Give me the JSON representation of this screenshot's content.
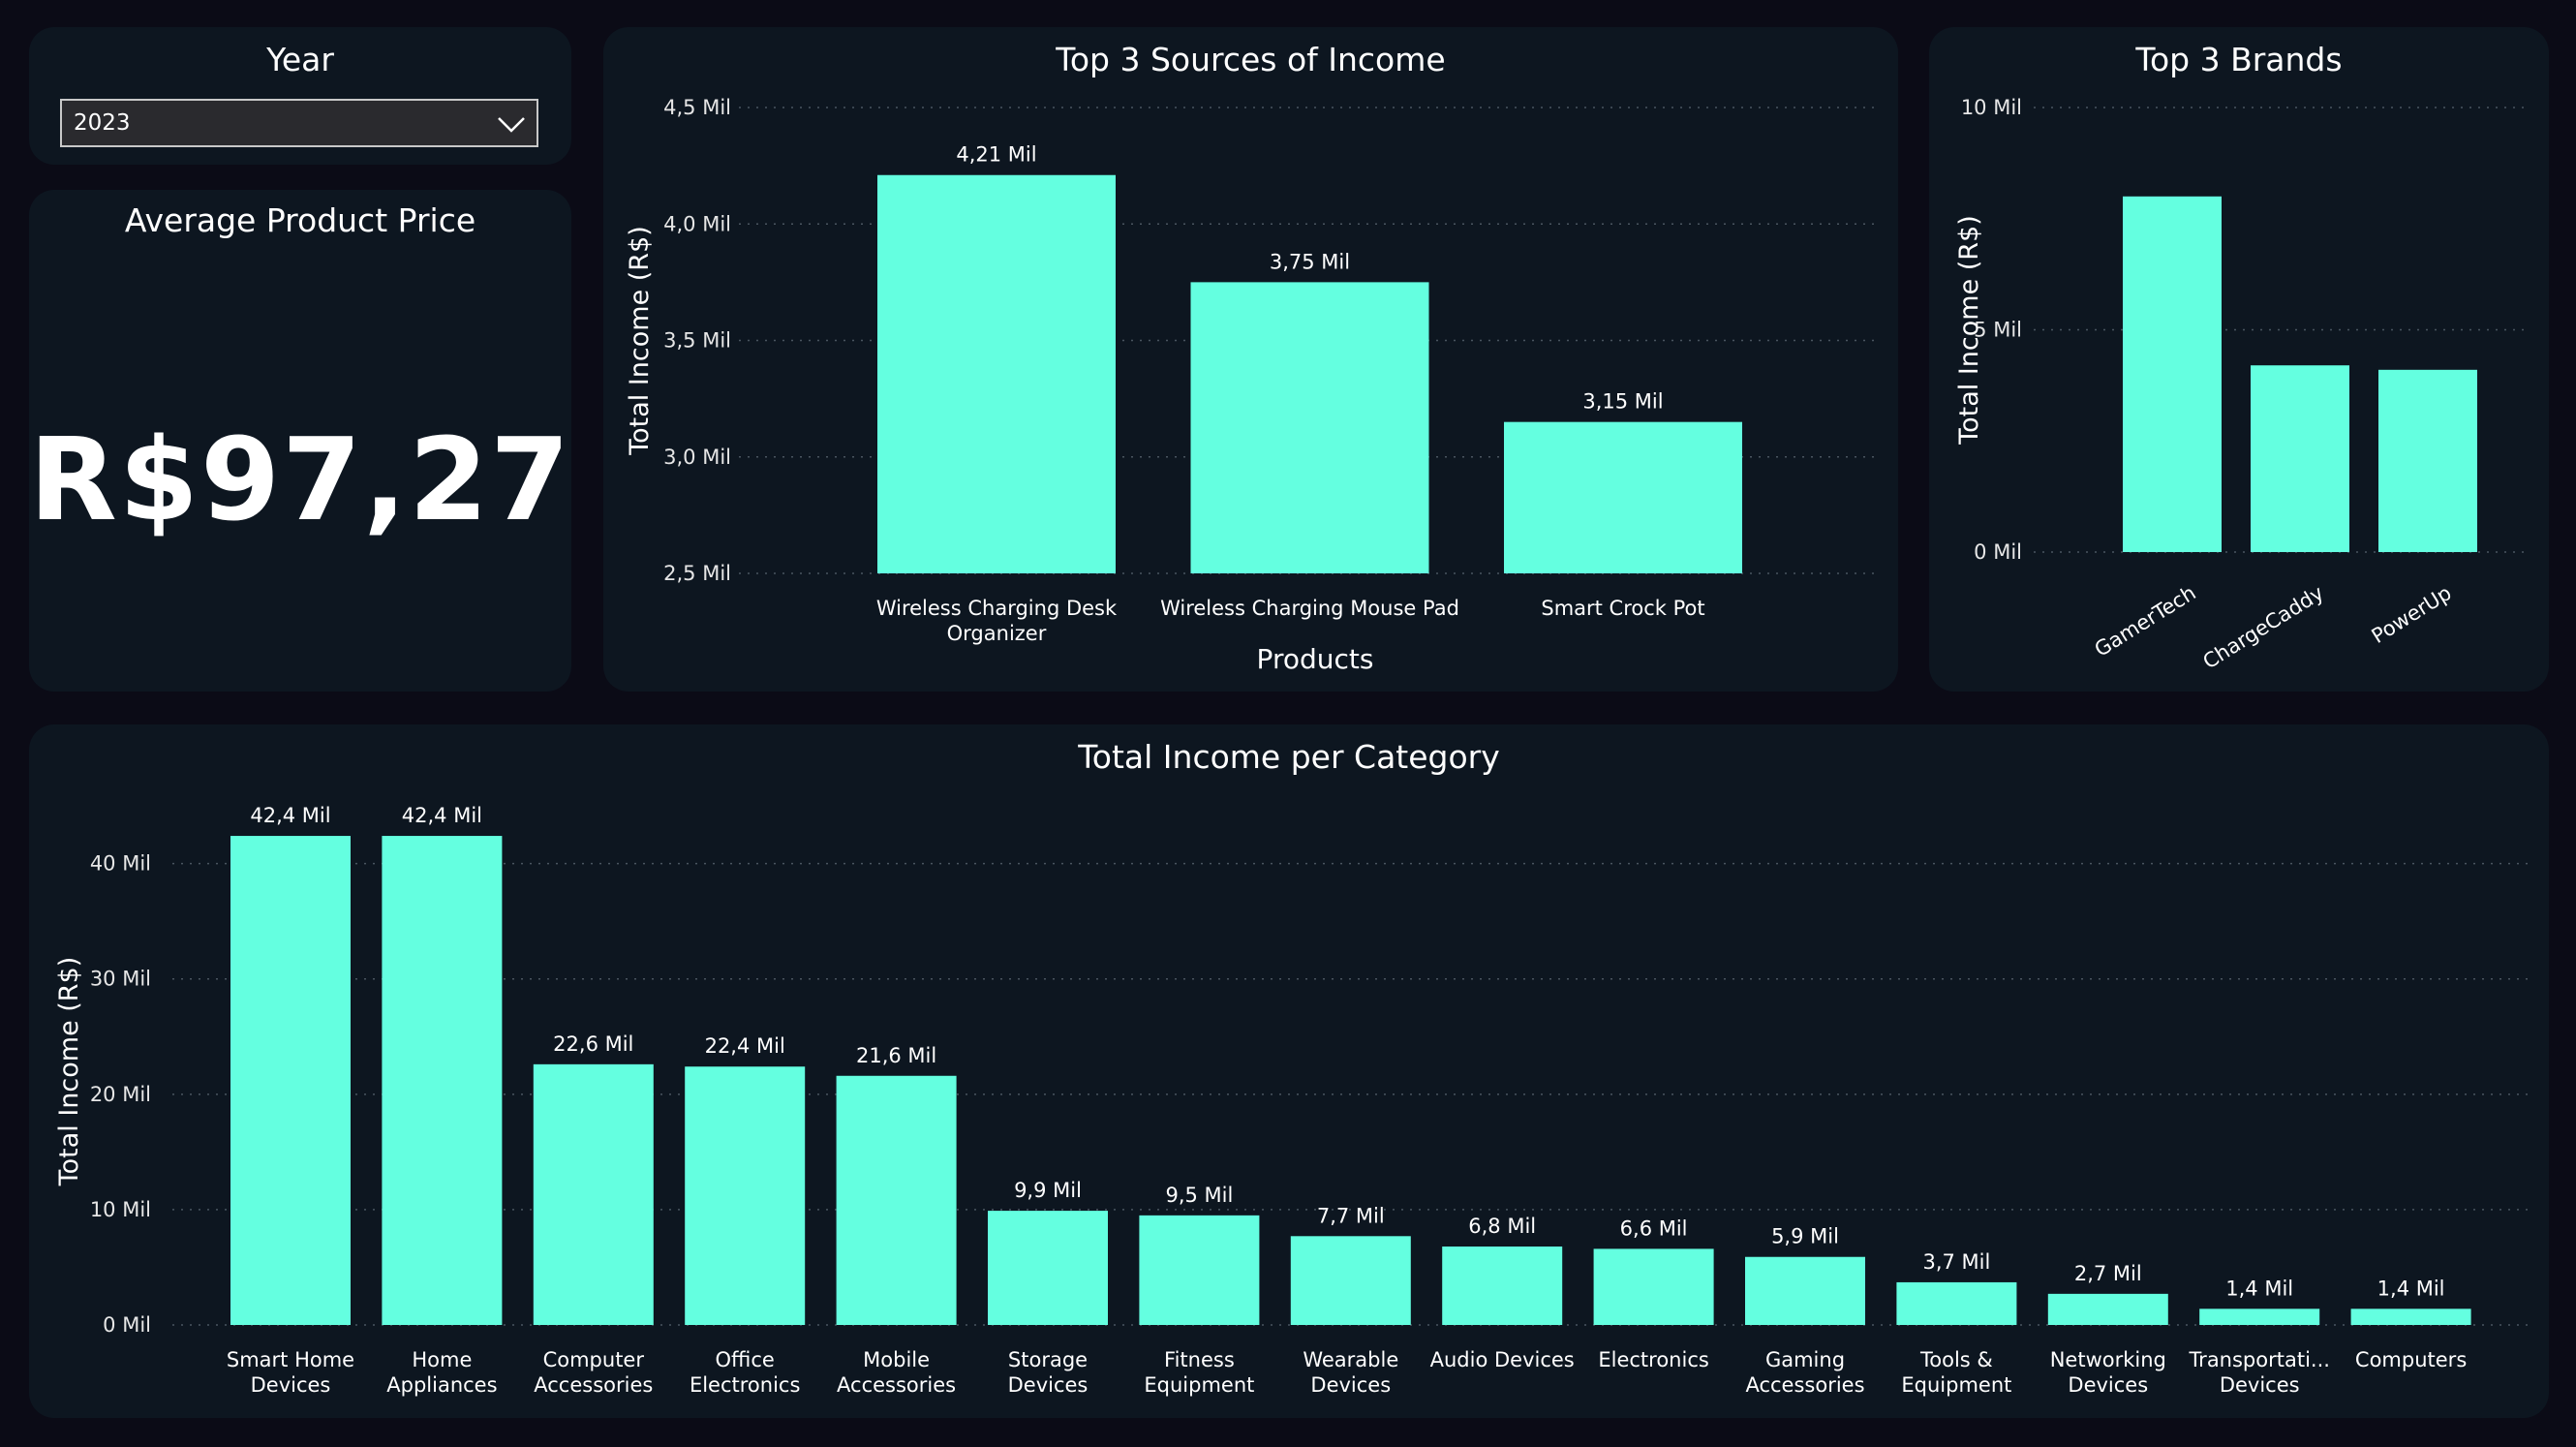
{
  "year_filter": {
    "title": "Year",
    "selected": "2023"
  },
  "kpi": {
    "title": "Average Product Price",
    "value": "R$97,27"
  },
  "colors": {
    "bar": "#64ffe0",
    "card": "#0d1620",
    "background": "#0b0b16",
    "grid": "#4a5560",
    "text": "#ffffff"
  },
  "chart_data": [
    {
      "id": "top3",
      "type": "bar",
      "title": "Top 3 Sources of Income",
      "xlabel": "Products",
      "ylabel": "Total Income (R$)",
      "categories": [
        [
          "Wireless Charging Desk",
          "Organizer"
        ],
        [
          "Wireless Charging Mouse Pad"
        ],
        [
          "Smart Crock Pot"
        ]
      ],
      "values": [
        4.21,
        3.75,
        3.15
      ],
      "data_labels": [
        "4,21 Mil",
        "3,75 Mil",
        "3,15 Mil"
      ],
      "ylim": [
        2.5,
        4.5
      ],
      "yticks": [
        2.5,
        3.0,
        3.5,
        4.0,
        4.5
      ],
      "ytick_labels": [
        "2,5 Mil",
        "3,0 Mil",
        "3,5 Mil",
        "4,0 Mil",
        "4,5 Mil"
      ],
      "grid": true
    },
    {
      "id": "brands",
      "type": "bar",
      "title": "Top 3 Brands",
      "ylabel": "Total Income (R$)",
      "categories": [
        "GamerTech",
        "ChargeCaddy",
        "PowerUp"
      ],
      "values": [
        8.0,
        4.2,
        4.1
      ],
      "ylim": [
        0,
        10
      ],
      "yticks": [
        0,
        5,
        10
      ],
      "ytick_labels": [
        "0 Mil",
        "5 Mil",
        "10 Mil"
      ],
      "grid": true
    },
    {
      "id": "category",
      "type": "bar",
      "title": "Total Income per Category",
      "ylabel": "Total Income (R$)",
      "categories": [
        [
          "Smart Home",
          "Devices"
        ],
        [
          "Home",
          "Appliances"
        ],
        [
          "Computer",
          "Accessories"
        ],
        [
          "Office",
          "Electronics"
        ],
        [
          "Mobile",
          "Accessories"
        ],
        [
          "Storage",
          "Devices"
        ],
        [
          "Fitness",
          "Equipment"
        ],
        [
          "Wearable",
          "Devices"
        ],
        [
          "Audio Devices"
        ],
        [
          "Electronics"
        ],
        [
          "Gaming",
          "Accessories"
        ],
        [
          "Tools &",
          "Equipment"
        ],
        [
          "Networking",
          "Devices"
        ],
        [
          "Transportati...",
          "Devices"
        ],
        [
          "Computers"
        ]
      ],
      "values": [
        42.4,
        42.4,
        22.6,
        22.4,
        21.6,
        9.9,
        9.5,
        7.7,
        6.8,
        6.6,
        5.9,
        3.7,
        2.7,
        1.4,
        1.4
      ],
      "data_labels": [
        "42,4 Mil",
        "42,4 Mil",
        "22,6 Mil",
        "22,4 Mil",
        "21,6 Mil",
        "9,9 Mil",
        "9,5 Mil",
        "7,7 Mil",
        "6,8 Mil",
        "6,6 Mil",
        "5,9 Mil",
        "3,7 Mil",
        "2,7 Mil",
        "1,4 Mil",
        "1,4 Mil"
      ],
      "ylim": [
        0,
        44
      ],
      "yticks": [
        0,
        10,
        20,
        30,
        40
      ],
      "ytick_labels": [
        "0 Mil",
        "10 Mil",
        "20 Mil",
        "30 Mil",
        "40 Mil"
      ],
      "grid": true
    }
  ]
}
